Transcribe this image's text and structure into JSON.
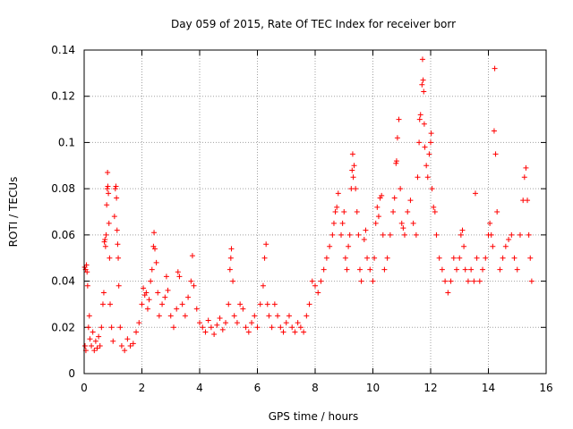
{
  "chart_data": {
    "type": "scatter",
    "title": "Day 059 of 2015, Rate Of TEC Index for receiver borr",
    "xlabel": "GPS time / hours",
    "ylabel": "ROTI / TECUs",
    "xlim": [
      0,
      16
    ],
    "ylim": [
      0,
      0.14
    ],
    "xticks": [
      0,
      2,
      4,
      6,
      8,
      10,
      12,
      14,
      16
    ],
    "yticks": [
      0,
      0.02,
      0.04,
      0.06,
      0.08,
      0.1,
      0.12,
      0.14
    ],
    "xtick_labels": [
      "0",
      "2",
      "4",
      "6",
      "8",
      "10",
      "12",
      "14",
      "16"
    ],
    "ytick_labels": [
      "0",
      "0.02",
      "0.04",
      "0.06",
      "0.08",
      "0.1",
      "0.12",
      "0.14"
    ],
    "grid": true,
    "marker": "+",
    "color": "#ff0000",
    "series": [
      {
        "name": "ROTI",
        "points": [
          [
            0.02,
            0.046
          ],
          [
            0.05,
            0.045
          ],
          [
            0.08,
            0.047
          ],
          [
            0.1,
            0.044
          ],
          [
            0.12,
            0.038
          ],
          [
            0.03,
            0.012
          ],
          [
            0.06,
            0.01
          ],
          [
            0.15,
            0.02
          ],
          [
            0.18,
            0.025
          ],
          [
            0.2,
            0.015
          ],
          [
            0.25,
            0.012
          ],
          [
            0.3,
            0.018
          ],
          [
            0.35,
            0.01
          ],
          [
            0.4,
            0.014
          ],
          [
            0.45,
            0.011
          ],
          [
            0.5,
            0.016
          ],
          [
            0.55,
            0.012
          ],
          [
            0.6,
            0.02
          ],
          [
            0.65,
            0.03
          ],
          [
            0.68,
            0.035
          ],
          [
            0.7,
            0.057
          ],
          [
            0.72,
            0.058
          ],
          [
            0.74,
            0.055
          ],
          [
            0.76,
            0.06
          ],
          [
            0.78,
            0.073
          ],
          [
            0.8,
            0.08
          ],
          [
            0.81,
            0.087
          ],
          [
            0.82,
            0.081
          ],
          [
            0.84,
            0.078
          ],
          [
            0.86,
            0.065
          ],
          [
            0.88,
            0.05
          ],
          [
            0.9,
            0.03
          ],
          [
            0.95,
            0.02
          ],
          [
            1.0,
            0.014
          ],
          [
            1.05,
            0.068
          ],
          [
            1.08,
            0.08
          ],
          [
            1.1,
            0.081
          ],
          [
            1.12,
            0.076
          ],
          [
            1.14,
            0.062
          ],
          [
            1.16,
            0.056
          ],
          [
            1.18,
            0.05
          ],
          [
            1.2,
            0.038
          ],
          [
            1.25,
            0.02
          ],
          [
            1.3,
            0.012
          ],
          [
            1.4,
            0.01
          ],
          [
            1.5,
            0.015
          ],
          [
            1.6,
            0.012
          ],
          [
            1.7,
            0.013
          ],
          [
            1.8,
            0.018
          ],
          [
            1.9,
            0.022
          ],
          [
            2.0,
            0.03
          ],
          [
            2.05,
            0.037
          ],
          [
            2.1,
            0.034
          ],
          [
            2.15,
            0.035
          ],
          [
            2.2,
            0.028
          ],
          [
            2.25,
            0.032
          ],
          [
            2.3,
            0.04
          ],
          [
            2.35,
            0.045
          ],
          [
            2.4,
            0.055
          ],
          [
            2.42,
            0.061
          ],
          [
            2.45,
            0.054
          ],
          [
            2.5,
            0.048
          ],
          [
            2.55,
            0.035
          ],
          [
            2.6,
            0.025
          ],
          [
            2.7,
            0.03
          ],
          [
            2.8,
            0.033
          ],
          [
            2.85,
            0.042
          ],
          [
            2.9,
            0.036
          ],
          [
            3.0,
            0.025
          ],
          [
            3.1,
            0.02
          ],
          [
            3.2,
            0.028
          ],
          [
            3.25,
            0.044
          ],
          [
            3.3,
            0.042
          ],
          [
            3.4,
            0.03
          ],
          [
            3.5,
            0.025
          ],
          [
            3.6,
            0.033
          ],
          [
            3.7,
            0.04
          ],
          [
            3.75,
            0.051
          ],
          [
            3.8,
            0.038
          ],
          [
            3.9,
            0.028
          ],
          [
            4.0,
            0.022
          ],
          [
            4.1,
            0.02
          ],
          [
            4.2,
            0.018
          ],
          [
            4.3,
            0.023
          ],
          [
            4.4,
            0.02
          ],
          [
            4.5,
            0.017
          ],
          [
            4.6,
            0.021
          ],
          [
            4.7,
            0.024
          ],
          [
            4.8,
            0.019
          ],
          [
            4.9,
            0.022
          ],
          [
            5.0,
            0.03
          ],
          [
            5.05,
            0.045
          ],
          [
            5.08,
            0.05
          ],
          [
            5.1,
            0.054
          ],
          [
            5.15,
            0.04
          ],
          [
            5.2,
            0.025
          ],
          [
            5.3,
            0.022
          ],
          [
            5.4,
            0.03
          ],
          [
            5.5,
            0.028
          ],
          [
            5.6,
            0.02
          ],
          [
            5.7,
            0.018
          ],
          [
            5.8,
            0.022
          ],
          [
            5.9,
            0.025
          ],
          [
            6.0,
            0.02
          ],
          [
            6.1,
            0.03
          ],
          [
            6.2,
            0.038
          ],
          [
            6.25,
            0.05
          ],
          [
            6.3,
            0.056
          ],
          [
            6.35,
            0.03
          ],
          [
            6.4,
            0.025
          ],
          [
            6.5,
            0.02
          ],
          [
            6.6,
            0.03
          ],
          [
            6.7,
            0.025
          ],
          [
            6.8,
            0.02
          ],
          [
            6.9,
            0.018
          ],
          [
            7.0,
            0.022
          ],
          [
            7.1,
            0.025
          ],
          [
            7.2,
            0.02
          ],
          [
            7.3,
            0.018
          ],
          [
            7.4,
            0.022
          ],
          [
            7.5,
            0.02
          ],
          [
            7.6,
            0.018
          ],
          [
            7.7,
            0.025
          ],
          [
            7.8,
            0.03
          ],
          [
            7.9,
            0.04
          ],
          [
            8.0,
            0.038
          ],
          [
            8.1,
            0.035
          ],
          [
            8.2,
            0.04
          ],
          [
            8.3,
            0.045
          ],
          [
            8.4,
            0.05
          ],
          [
            8.5,
            0.055
          ],
          [
            8.6,
            0.06
          ],
          [
            8.65,
            0.065
          ],
          [
            8.7,
            0.07
          ],
          [
            8.75,
            0.072
          ],
          [
            8.8,
            0.078
          ],
          [
            8.9,
            0.06
          ],
          [
            8.95,
            0.065
          ],
          [
            9.0,
            0.07
          ],
          [
            9.05,
            0.05
          ],
          [
            9.1,
            0.045
          ],
          [
            9.15,
            0.055
          ],
          [
            9.2,
            0.06
          ],
          [
            9.25,
            0.08
          ],
          [
            9.28,
            0.088
          ],
          [
            9.3,
            0.095
          ],
          [
            9.32,
            0.085
          ],
          [
            9.35,
            0.09
          ],
          [
            9.4,
            0.08
          ],
          [
            9.45,
            0.07
          ],
          [
            9.5,
            0.06
          ],
          [
            9.55,
            0.045
          ],
          [
            9.6,
            0.04
          ],
          [
            9.7,
            0.058
          ],
          [
            9.75,
            0.062
          ],
          [
            9.8,
            0.05
          ],
          [
            9.9,
            0.045
          ],
          [
            10.0,
            0.04
          ],
          [
            10.05,
            0.05
          ],
          [
            10.1,
            0.065
          ],
          [
            10.15,
            0.072
          ],
          [
            10.2,
            0.068
          ],
          [
            10.25,
            0.076
          ],
          [
            10.3,
            0.077
          ],
          [
            10.35,
            0.06
          ],
          [
            10.4,
            0.045
          ],
          [
            10.5,
            0.05
          ],
          [
            10.6,
            0.06
          ],
          [
            10.7,
            0.07
          ],
          [
            10.75,
            0.076
          ],
          [
            10.8,
            0.091
          ],
          [
            10.82,
            0.092
          ],
          [
            10.85,
            0.102
          ],
          [
            10.9,
            0.11
          ],
          [
            10.95,
            0.08
          ],
          [
            11.0,
            0.065
          ],
          [
            11.05,
            0.063
          ],
          [
            11.1,
            0.06
          ],
          [
            11.2,
            0.07
          ],
          [
            11.3,
            0.075
          ],
          [
            11.4,
            0.065
          ],
          [
            11.5,
            0.06
          ],
          [
            11.55,
            0.085
          ],
          [
            11.6,
            0.1
          ],
          [
            11.62,
            0.11
          ],
          [
            11.65,
            0.112
          ],
          [
            11.7,
            0.125
          ],
          [
            11.72,
            0.136
          ],
          [
            11.74,
            0.127
          ],
          [
            11.76,
            0.122
          ],
          [
            11.78,
            0.108
          ],
          [
            11.8,
            0.098
          ],
          [
            11.85,
            0.09
          ],
          [
            11.9,
            0.085
          ],
          [
            11.95,
            0.095
          ],
          [
            12.0,
            0.1
          ],
          [
            12.02,
            0.104
          ],
          [
            12.05,
            0.08
          ],
          [
            12.1,
            0.072
          ],
          [
            12.15,
            0.07
          ],
          [
            12.2,
            0.06
          ],
          [
            12.3,
            0.05
          ],
          [
            12.4,
            0.045
          ],
          [
            12.5,
            0.04
          ],
          [
            12.6,
            0.035
          ],
          [
            12.7,
            0.04
          ],
          [
            12.8,
            0.05
          ],
          [
            12.9,
            0.045
          ],
          [
            13.0,
            0.05
          ],
          [
            13.05,
            0.06
          ],
          [
            13.1,
            0.062
          ],
          [
            13.15,
            0.055
          ],
          [
            13.2,
            0.045
          ],
          [
            13.3,
            0.04
          ],
          [
            13.4,
            0.045
          ],
          [
            13.5,
            0.04
          ],
          [
            13.55,
            0.078
          ],
          [
            13.6,
            0.05
          ],
          [
            13.7,
            0.04
          ],
          [
            13.8,
            0.045
          ],
          [
            13.9,
            0.05
          ],
          [
            14.0,
            0.06
          ],
          [
            14.05,
            0.065
          ],
          [
            14.1,
            0.06
          ],
          [
            14.15,
            0.055
          ],
          [
            14.2,
            0.105
          ],
          [
            14.22,
            0.132
          ],
          [
            14.25,
            0.095
          ],
          [
            14.3,
            0.07
          ],
          [
            14.4,
            0.045
          ],
          [
            14.5,
            0.05
          ],
          [
            14.6,
            0.055
          ],
          [
            14.7,
            0.058
          ],
          [
            14.8,
            0.06
          ],
          [
            14.9,
            0.05
          ],
          [
            15.0,
            0.045
          ],
          [
            15.1,
            0.06
          ],
          [
            15.2,
            0.075
          ],
          [
            15.25,
            0.085
          ],
          [
            15.3,
            0.089
          ],
          [
            15.35,
            0.075
          ],
          [
            15.4,
            0.06
          ],
          [
            15.45,
            0.05
          ],
          [
            15.5,
            0.04
          ]
        ]
      }
    ]
  }
}
